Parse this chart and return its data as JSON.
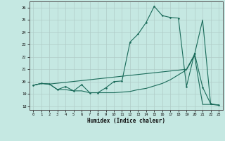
{
  "xlabel": "Humidex (Indice chaleur)",
  "xlim": [
    -0.5,
    23.5
  ],
  "ylim": [
    17.7,
    26.5
  ],
  "xticks": [
    0,
    1,
    2,
    3,
    4,
    5,
    6,
    7,
    8,
    9,
    10,
    11,
    12,
    13,
    14,
    15,
    16,
    17,
    18,
    19,
    20,
    21,
    22,
    23
  ],
  "yticks": [
    18,
    19,
    20,
    21,
    22,
    23,
    24,
    25,
    26
  ],
  "bg_color": "#c5e8e2",
  "grid_color": "#b0ccc8",
  "line_color": "#1a6b5a",
  "line1_x": [
    0,
    1,
    2,
    3,
    4,
    5,
    6,
    7,
    8,
    9,
    10,
    11,
    12,
    13,
    14,
    15,
    16,
    17,
    18,
    19,
    20,
    21,
    22,
    23
  ],
  "line1_y": [
    19.7,
    19.85,
    19.8,
    19.35,
    19.6,
    19.25,
    19.75,
    19.1,
    19.1,
    19.5,
    20.0,
    20.05,
    23.2,
    23.85,
    24.8,
    26.1,
    25.35,
    25.2,
    25.15,
    19.6,
    22.3,
    19.55,
    18.2,
    18.1
  ],
  "line2_x": [
    0,
    1,
    2,
    19,
    20,
    21,
    22,
    23
  ],
  "line2_y": [
    19.7,
    19.85,
    19.8,
    21.0,
    22.2,
    25.0,
    18.15,
    18.1
  ],
  "line3_x": [
    0,
    1,
    2,
    3,
    4,
    5,
    6,
    7,
    8,
    9,
    10,
    11,
    12,
    13,
    14,
    15,
    16,
    17,
    18,
    19,
    20,
    21,
    22,
    23
  ],
  "line3_y": [
    19.7,
    19.85,
    19.8,
    19.35,
    19.35,
    19.25,
    19.25,
    19.1,
    19.1,
    19.1,
    19.1,
    19.15,
    19.2,
    19.35,
    19.45,
    19.65,
    19.85,
    20.15,
    20.55,
    20.95,
    22.1,
    18.15,
    18.15,
    18.1
  ]
}
